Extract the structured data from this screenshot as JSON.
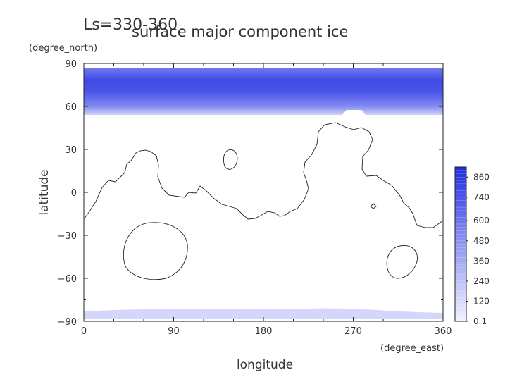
{
  "chart_data": {
    "type": "heatmap",
    "title_left": "Ls=330-360",
    "title": "surface major component ice",
    "xlabel": "longitude",
    "ylabel": "latitude",
    "xunit": "(degree_east)",
    "yunit": "(degree_north)",
    "xlim": [
      0,
      360
    ],
    "ylim": [
      -90,
      90
    ],
    "xticks": [
      "0",
      "90",
      "180",
      "270",
      "360"
    ],
    "yticks": [
      "90",
      "60",
      "30",
      "0",
      "−30",
      "−60",
      "−90"
    ],
    "colorbar": {
      "labels": [
        "860",
        "740",
        "600",
        "480",
        "360",
        "240",
        "120",
        "0.1"
      ],
      "min": 0.1,
      "max": 920,
      "color_low": "#f2f2ff",
      "color_high": "#1f2be0"
    },
    "regions": [
      {
        "name": "north polar cap",
        "lat_range": [
          55,
          87
        ],
        "peak_value": 850
      },
      {
        "name": "south polar cap",
        "lat_range": [
          -86,
          -82
        ],
        "peak_value": 60
      }
    ]
  }
}
